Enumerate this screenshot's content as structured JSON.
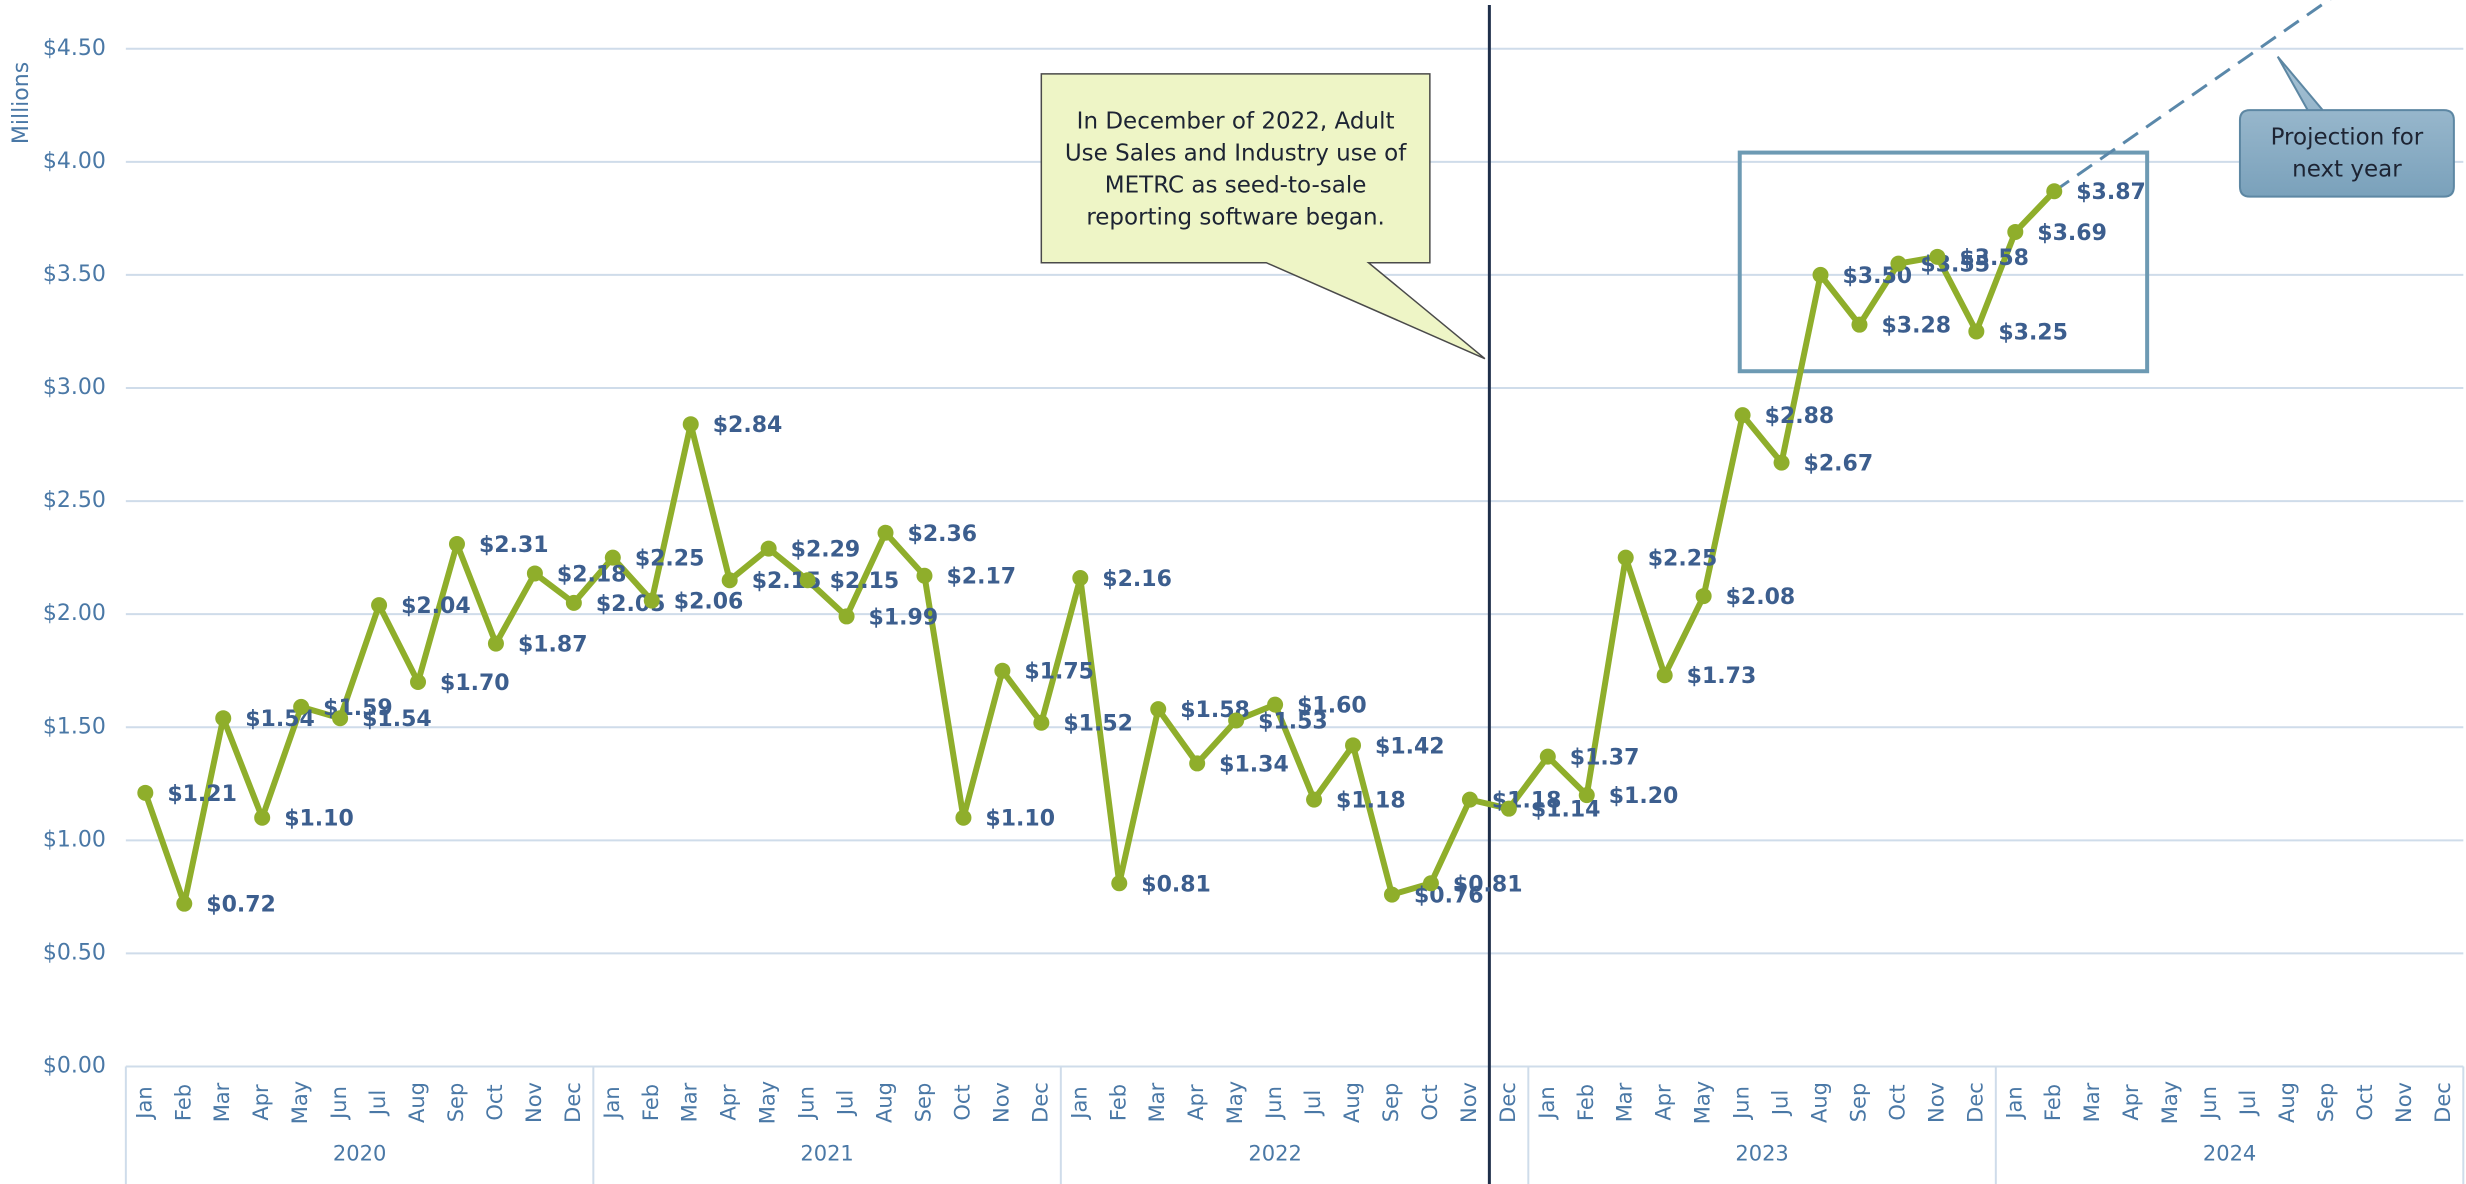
{
  "chart_data": {
    "type": "line",
    "y_axis_label": "Millions",
    "categories": [
      "Jan",
      "Feb",
      "Mar",
      "Apr",
      "May",
      "Jun",
      "Jul",
      "Aug",
      "Sep",
      "Oct",
      "Nov",
      "Dec",
      "Jan",
      "Feb",
      "Mar",
      "Apr",
      "May",
      "Jun",
      "Jul",
      "Aug",
      "Sep",
      "Oct",
      "Nov",
      "Dec",
      "Jan",
      "Feb",
      "Mar",
      "Apr",
      "May",
      "Jun",
      "Jul",
      "Aug",
      "Sep",
      "Oct",
      "Nov",
      "Dec",
      "Jan",
      "Feb",
      "Mar",
      "Apr",
      "May",
      "Jun",
      "Jul",
      "Aug",
      "Sep",
      "Oct",
      "Nov",
      "Dec",
      "Jan",
      "Feb",
      "Mar",
      "Apr",
      "May",
      "Jun",
      "Jul",
      "Aug",
      "Sep",
      "Oct",
      "Nov",
      "Dec"
    ],
    "groups": [
      {
        "name": "2020",
        "count": 12
      },
      {
        "name": "2021",
        "count": 12
      },
      {
        "name": "2022",
        "count": 11
      },
      {
        "name": null,
        "count": 1
      },
      {
        "name": "2023",
        "count": 12
      },
      {
        "name": "2024",
        "count": 12
      }
    ],
    "series": [
      {
        "color": "#8fae2b",
        "values": [
          1.21,
          0.72,
          1.54,
          1.1,
          1.59,
          1.54,
          2.04,
          1.7,
          2.31,
          1.87,
          2.18,
          2.05,
          2.25,
          2.06,
          2.84,
          2.15,
          2.29,
          2.15,
          1.99,
          2.36,
          2.17,
          1.1,
          1.75,
          1.52,
          2.16,
          0.81,
          1.58,
          1.34,
          1.53,
          1.6,
          1.18,
          1.42,
          0.76,
          0.81,
          1.18,
          1.14,
          1.37,
          1.2,
          2.25,
          1.73,
          2.08,
          2.88,
          2.67,
          3.5,
          3.28,
          3.55,
          3.58,
          3.25,
          3.69,
          3.87,
          null,
          null,
          null,
          null,
          null,
          null,
          null,
          null,
          null,
          null
        ],
        "value_labels": [
          "$1.21",
          "$0.72",
          "$1.54",
          "$1.10",
          "$1.59",
          "$1.54",
          "$2.04",
          "$1.70",
          "$2.31",
          "$1.87",
          "$2.18",
          "$2.05",
          "$2.25",
          "$2.06",
          "$2.84",
          "$2.15",
          "$2.29",
          "$2.15",
          "$1.99",
          "$2.36",
          "$2.17",
          "$1.10",
          "$1.75",
          "$1.52",
          "$2.16",
          "$0.81",
          "$1.58",
          "$1.34",
          "$1.53",
          "$1.60",
          "$1.18",
          "$1.42",
          "$0.76",
          "$0.81",
          "$1.18",
          "$1.14",
          "$1.37",
          "$1.20",
          "$2.25",
          "$1.73",
          "$2.08",
          "$2.88",
          "$2.67",
          "$3.50",
          "$3.28",
          "$3.55",
          "$3.58",
          "$3.25",
          "$3.69",
          "$3.87",
          null,
          null,
          null,
          null,
          null,
          null,
          null,
          null,
          null,
          null
        ]
      }
    ],
    "projection": {
      "text": [
        "Projection for",
        "next year"
      ],
      "color": "#5a88aa",
      "dashed": true,
      "values": [
        null,
        null,
        null,
        null,
        null,
        null,
        null,
        null,
        null,
        null,
        null,
        null,
        null,
        null,
        null,
        null,
        null,
        null,
        null,
        null,
        null,
        null,
        null,
        null,
        null,
        null,
        null,
        null,
        null,
        null,
        null,
        null,
        null,
        null,
        null,
        null,
        null,
        null,
        null,
        null,
        null,
        null,
        null,
        null,
        null,
        null,
        null,
        null,
        null,
        3.87,
        3.99,
        4.11,
        4.23,
        4.35,
        4.47,
        4.59,
        4.71,
        4.83,
        4.95,
        5.07
      ]
    },
    "annotation": {
      "text": [
        "In December of 2022, Adult",
        "Use Sales and Industry use of",
        "METRC as seed-to-sale",
        "reporting software began."
      ]
    },
    "ylim": [
      0,
      4.5
    ],
    "yticks": [
      {
        "value": 0,
        "label": "$0.00"
      },
      {
        "value": 0.5,
        "label": "$0.50"
      },
      {
        "value": 1,
        "label": "$1.00"
      },
      {
        "value": 1.5,
        "label": "$1.50"
      },
      {
        "value": 2,
        "label": "$2.00"
      },
      {
        "value": 2.5,
        "label": "$2.50"
      },
      {
        "value": 3,
        "label": "$3.00"
      },
      {
        "value": 3.5,
        "label": "$3.50"
      },
      {
        "value": 4,
        "label": "$4.00"
      },
      {
        "value": 4.5,
        "label": "$4.50"
      }
    ],
    "grid": true
  }
}
